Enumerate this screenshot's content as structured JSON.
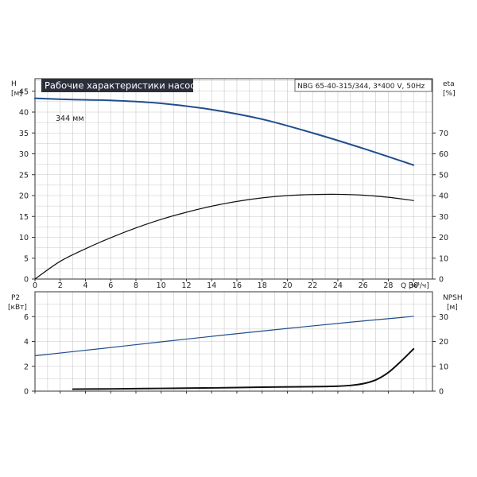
{
  "title": "Рабочие характеристики насоса",
  "model": "NBG 65-40-315/344, 3*400 V, 50Hz",
  "curve_label": "344 мм",
  "colors": {
    "head": "#1f4e8c",
    "eta": "#111111",
    "p2": "#1f4e8c",
    "npsh": "#111111",
    "grid": "#c8c8c8",
    "title_bg": "#2b2f3a"
  },
  "chart_data": [
    {
      "type": "line",
      "name": "upper",
      "grid": true,
      "xlabel": "Q [м³/ч]",
      "xlim": [
        0,
        31.5
      ],
      "xticks": [
        0,
        2,
        4,
        6,
        8,
        10,
        12,
        14,
        16,
        18,
        20,
        22,
        24,
        26,
        28,
        30
      ],
      "left_axis": {
        "label": "H",
        "unit": "[м]",
        "ylim": [
          0,
          48
        ],
        "ticks": [
          0,
          5,
          10,
          15,
          20,
          25,
          30,
          35,
          40,
          45
        ]
      },
      "right_axis": {
        "label": "eta",
        "unit": "[%]",
        "ylim": [
          0,
          96
        ],
        "ticks": [
          0,
          10,
          20,
          30,
          40,
          50,
          60,
          70
        ]
      },
      "series": [
        {
          "key": "head",
          "axis": "left",
          "color": "#1f4e8c",
          "width": 2,
          "x": [
            0,
            3,
            6,
            10,
            14,
            18,
            22,
            26,
            30
          ],
          "y": [
            43.3,
            43.0,
            42.8,
            42.1,
            40.6,
            38.3,
            35.0,
            31.3,
            27.3
          ],
          "thin_until": 3
        },
        {
          "key": "eta",
          "axis": "right",
          "color": "#111111",
          "width": 1.2,
          "x": [
            0,
            2,
            4,
            6,
            8,
            10,
            12,
            14,
            16,
            18,
            20,
            22,
            24,
            26,
            28,
            30
          ],
          "y": [
            0,
            8.5,
            14.5,
            19.8,
            24.5,
            28.6,
            32.0,
            34.9,
            37.2,
            38.9,
            40.0,
            40.5,
            40.6,
            40.2,
            39.2,
            37.6
          ]
        }
      ]
    },
    {
      "type": "line",
      "name": "lower",
      "grid": true,
      "xlim": [
        0,
        31.5
      ],
      "xticks": [
        0,
        2,
        4,
        6,
        8,
        10,
        12,
        14,
        16,
        18,
        20,
        22,
        24,
        26,
        28,
        30
      ],
      "left_axis": {
        "label": "P2",
        "unit": "[кВт]",
        "ylim": [
          0,
          8
        ],
        "ticks": [
          0,
          2,
          4,
          6
        ]
      },
      "right_axis": {
        "label": "NPSH",
        "unit": "[м]",
        "ylim": [
          0,
          40
        ],
        "ticks": [
          0,
          10,
          20,
          30
        ]
      },
      "series": [
        {
          "key": "p2",
          "axis": "left",
          "color": "#1f4e8c",
          "width": 1.2,
          "x": [
            0,
            5,
            10,
            15,
            20,
            25,
            30
          ],
          "y": [
            2.85,
            3.4,
            3.97,
            4.52,
            5.05,
            5.55,
            6.02
          ]
        },
        {
          "key": "npsh",
          "axis": "right",
          "color": "#111111",
          "width": 2,
          "x": [
            3,
            6,
            10,
            14,
            18,
            22,
            24,
            25,
            26,
            27,
            28,
            29,
            30
          ],
          "y": [
            0.8,
            0.9,
            1.1,
            1.3,
            1.6,
            1.8,
            2.0,
            2.3,
            3.0,
            4.5,
            7.5,
            12.0,
            17.0
          ]
        }
      ]
    }
  ]
}
